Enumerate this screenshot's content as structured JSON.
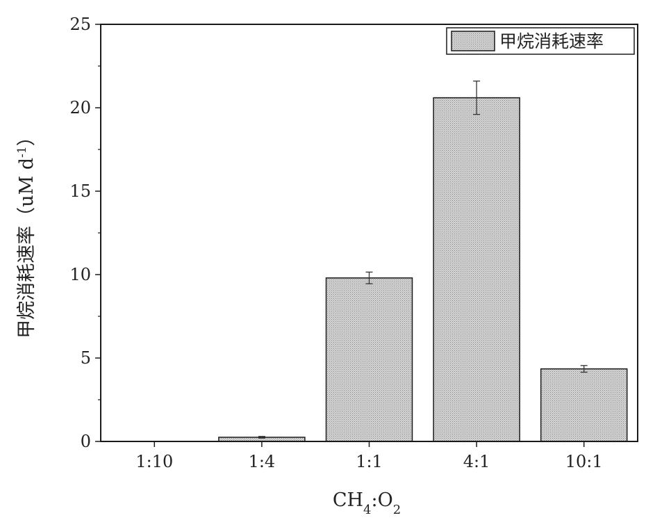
{
  "chart_data": {
    "type": "bar",
    "categories": [
      "1:10",
      "1:4",
      "1:1",
      "4:1",
      "10:1"
    ],
    "series": [
      {
        "name": "甲烷消耗速率",
        "values": [
          0,
          0.25,
          9.8,
          20.6,
          4.35
        ],
        "errors": [
          0,
          0.05,
          0.35,
          1.0,
          0.2
        ]
      }
    ],
    "xlabel_parts": {
      "a": "CH",
      "a_sub": "4",
      "sep": ":",
      "b": "O",
      "b_sub": "2"
    },
    "ylabel_parts": {
      "main": "甲烷消耗速率（uM d",
      "sup": "-1",
      "close": "）"
    },
    "ylim": [
      0,
      25
    ],
    "yticks": [
      "0",
      "5",
      "10",
      "15",
      "20",
      "25"
    ],
    "ytick_values": [
      0,
      5,
      10,
      15,
      20,
      25
    ],
    "legend_position": "top-right",
    "grid": false,
    "colors": {
      "bar_fill": "#c8c8c8",
      "bar_stroke": "#1a1a1a",
      "axis": "#1a1a1a"
    }
  }
}
